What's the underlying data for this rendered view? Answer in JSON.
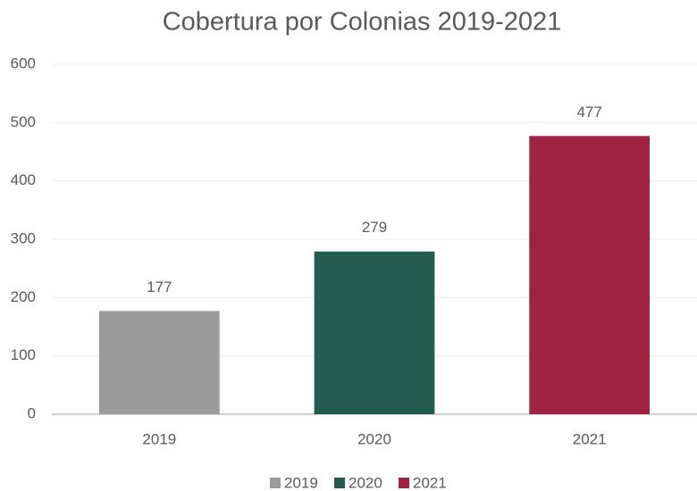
{
  "chart_data": {
    "type": "bar",
    "title": "Cobertura por Colonias 2019-2021",
    "categories": [
      "2019",
      "2020",
      "2021"
    ],
    "values": [
      177,
      279,
      477
    ],
    "colors": [
      "#9b9b9b",
      "#235b4e",
      "#9f2241"
    ],
    "ylim": [
      0,
      600
    ],
    "yticks": [
      0,
      100,
      200,
      300,
      400,
      500,
      600
    ],
    "grid": true,
    "data_labels": true,
    "legend": "bottom"
  }
}
